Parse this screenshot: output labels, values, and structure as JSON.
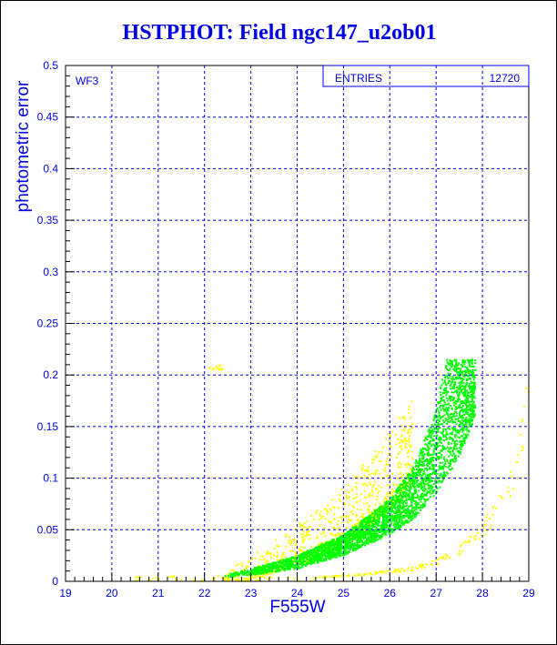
{
  "chart_data": {
    "type": "scatter",
    "title": "HSTPHOT: Field ngc147_u2ob01",
    "xlabel": "F555W",
    "ylabel": "photometric error",
    "xlim": [
      19,
      29
    ],
    "ylim": [
      0,
      0.5
    ],
    "xticks": [
      "19",
      "20",
      "21",
      "22",
      "23",
      "24",
      "25",
      "26",
      "27",
      "28",
      "29"
    ],
    "yticks": [
      "0",
      "0.05",
      "0.1",
      "0.15",
      "0.2",
      "0.25",
      "0.3",
      "0.35",
      "0.4",
      "0.45",
      "0.5"
    ],
    "grid": true,
    "panel_label": "WF3",
    "stats_box": {
      "label": "ENTRIES",
      "value": "12720",
      "position": "top-right"
    },
    "series": [
      {
        "name": "green",
        "color": "#00ff00",
        "lower_envelope": [
          [
            22.4,
            0.003
          ],
          [
            23,
            0.006
          ],
          [
            24,
            0.012
          ],
          [
            25,
            0.025
          ],
          [
            26,
            0.045
          ],
          [
            26.5,
            0.06
          ],
          [
            27,
            0.085
          ],
          [
            27.5,
            0.12
          ],
          [
            27.85,
            0.16
          ]
        ],
        "upper_envelope": [
          [
            22.4,
            0.006
          ],
          [
            23,
            0.012
          ],
          [
            24,
            0.025
          ],
          [
            25,
            0.045
          ],
          [
            26,
            0.08
          ],
          [
            26.5,
            0.11
          ],
          [
            27,
            0.165
          ],
          [
            27.2,
            0.215
          ],
          [
            27.85,
            0.215
          ]
        ]
      },
      {
        "name": "yellow",
        "color": "#ffff00",
        "regions": [
          {
            "desc": "above main band",
            "x": [
              22.0,
              26.5
            ],
            "y_above_band": [
              0,
              0.06
            ]
          },
          {
            "desc": "secondary sequence",
            "points": [
              [
                24.5,
                0.004
              ],
              [
                25.5,
                0.007
              ],
              [
                26.5,
                0.012
              ],
              [
                27,
                0.018
              ],
              [
                27.5,
                0.03
              ],
              [
                28,
                0.05
              ],
              [
                28.5,
                0.08
              ],
              [
                28.8,
                0.12
              ],
              [
                29,
                0.2
              ]
            ]
          },
          {
            "desc": "faint floor",
            "x": [
              20.5,
              24.5
            ],
            "y": [
              0,
              0.005
            ]
          }
        ]
      }
    ]
  }
}
